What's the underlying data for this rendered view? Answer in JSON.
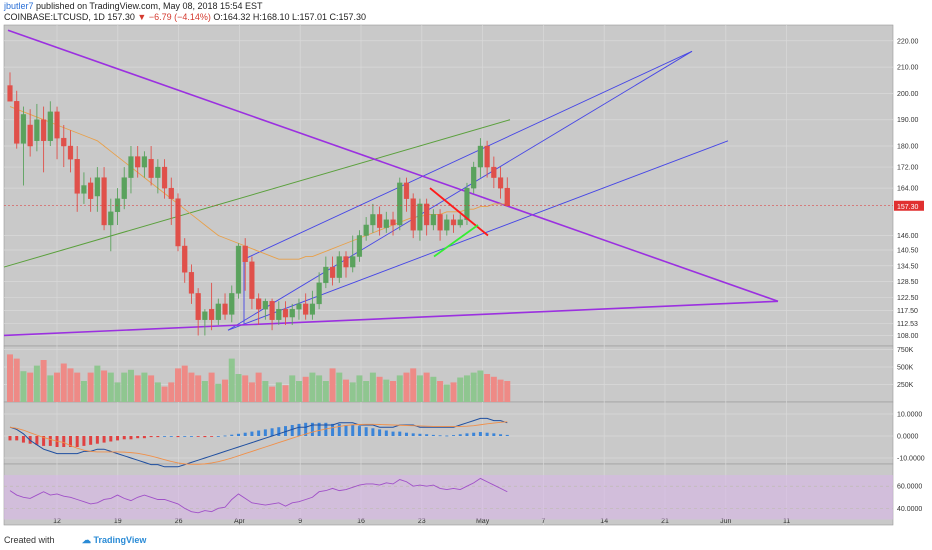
{
  "header": {
    "user": "jbutler7",
    "published": "published on TradingView.com, May 08, 2018 15:54 EST",
    "symbol": "COINBASE:LTCUSD, 1D",
    "last": "157.30",
    "change": "−6.79 (−4.14%)",
    "ohlc": "O:164.32 H:168.10 L:157.01 C:157.30"
  },
  "footer": {
    "created": "Created with",
    "brand": "TradingView"
  },
  "colors": {
    "panel": "#c9c9c9",
    "grid": "#d9d9d9",
    "up": "#5aa25d",
    "down": "#e0504a",
    "price_line": "#e03030",
    "purple": "#9b30e0",
    "channel": "#4646e6",
    "green_line": "#5aa03c",
    "ma": "#e8a04a",
    "macd_line": "#1f4fa0",
    "signal_line": "#f0904a",
    "rsi_line": "#a050c8",
    "rsi_band": "#d8b8e8"
  },
  "chart_data": {
    "type": "candlestick",
    "symbol": "COINBASE:LTCUSD",
    "interval": "1D",
    "y_ticks": [
      "220.00",
      "210.00",
      "200.00",
      "190.00",
      "180.00",
      "172.00",
      "164.00",
      "157.30",
      "146.00",
      "140.50",
      "134.50",
      "128.50",
      "122.50",
      "117.50",
      "112.53",
      "108.00"
    ],
    "x_ticks": [
      "12",
      "19",
      "26",
      "Apr",
      "9",
      "16",
      "23",
      "May",
      "7",
      "14",
      "21",
      "Jun",
      "11"
    ],
    "last_price": "157.30",
    "candles": [
      [
        203,
        197,
        208,
        197
      ],
      [
        197,
        181,
        201,
        179
      ],
      [
        181,
        192,
        195,
        165
      ],
      [
        188,
        180,
        194,
        176
      ],
      [
        182,
        190,
        196,
        178
      ],
      [
        190,
        182,
        195,
        170
      ],
      [
        182,
        193,
        197,
        180
      ],
      [
        193,
        183,
        195,
        175
      ],
      [
        183,
        180,
        188,
        172
      ],
      [
        180,
        175,
        186,
        170
      ],
      [
        175,
        162,
        180,
        155
      ],
      [
        162,
        165,
        170,
        158
      ],
      [
        166,
        160,
        168,
        155
      ],
      [
        161,
        168,
        172,
        155
      ],
      [
        168,
        150,
        172,
        148
      ],
      [
        150,
        155,
        160,
        140
      ],
      [
        155,
        160,
        164,
        150
      ],
      [
        160,
        168,
        172,
        156
      ],
      [
        168,
        176,
        180,
        162
      ],
      [
        176,
        172,
        180,
        168
      ],
      [
        172,
        176,
        178,
        168
      ],
      [
        175,
        168,
        180,
        165
      ],
      [
        168,
        172,
        175,
        162
      ],
      [
        172,
        164,
        175,
        160
      ],
      [
        164,
        160,
        168,
        150
      ],
      [
        160,
        142,
        162,
        140
      ],
      [
        142,
        132,
        145,
        128
      ],
      [
        132,
        124,
        135,
        120
      ],
      [
        124,
        114,
        126,
        108
      ],
      [
        114,
        117,
        118,
        108
      ],
      [
        118,
        114,
        128,
        110
      ],
      [
        114,
        120,
        122,
        112
      ],
      [
        120,
        116,
        124,
        114
      ],
      [
        116,
        124,
        127,
        113
      ],
      [
        124,
        142,
        143,
        122
      ],
      [
        142,
        136,
        145,
        125
      ],
      [
        136,
        122,
        138,
        118
      ],
      [
        122,
        118,
        124,
        112
      ],
      [
        118,
        121,
        122,
        114
      ],
      [
        121,
        114,
        122,
        110
      ],
      [
        114,
        118,
        121,
        112
      ],
      [
        118,
        115,
        121,
        112
      ],
      [
        115,
        118,
        120,
        112
      ],
      [
        118,
        120,
        122,
        114
      ],
      [
        120,
        116,
        124,
        114
      ],
      [
        116,
        120,
        125,
        114
      ],
      [
        120,
        128,
        132,
        118
      ],
      [
        128,
        134,
        138,
        126
      ],
      [
        134,
        130,
        138,
        127
      ],
      [
        130,
        138,
        140,
        128
      ],
      [
        138,
        134,
        140,
        130
      ],
      [
        134,
        138,
        146,
        132
      ],
      [
        138,
        146,
        148,
        136
      ],
      [
        146,
        150,
        153,
        144
      ],
      [
        150,
        154,
        158,
        147
      ],
      [
        154,
        149,
        157,
        146
      ],
      [
        149,
        152,
        155,
        147
      ],
      [
        152,
        150,
        155,
        146
      ],
      [
        150,
        166,
        168,
        148
      ],
      [
        166,
        160,
        168,
        155
      ],
      [
        160,
        148,
        162,
        145
      ],
      [
        148,
        158,
        160,
        144
      ],
      [
        158,
        150,
        160,
        146
      ],
      [
        150,
        154,
        156,
        148
      ],
      [
        154,
        148,
        156,
        144
      ],
      [
        148,
        152,
        154,
        146
      ],
      [
        152,
        150,
        154,
        147
      ],
      [
        150,
        152,
        154,
        149
      ],
      [
        152,
        164,
        166,
        150
      ],
      [
        164,
        172,
        174,
        162
      ],
      [
        172,
        180,
        183,
        168
      ],
      [
        180,
        172,
        182,
        168
      ],
      [
        172,
        168,
        176,
        164
      ],
      [
        168,
        164,
        172,
        160
      ],
      [
        164,
        157.3,
        168.1,
        157.01
      ]
    ],
    "volume_ticks": [
      "750K",
      "500K",
      "250K"
    ],
    "volume": [
      680,
      620,
      440,
      420,
      520,
      600,
      380,
      420,
      550,
      480,
      420,
      300,
      420,
      520,
      450,
      420,
      280,
      420,
      460,
      380,
      420,
      380,
      280,
      220,
      280,
      480,
      520,
      420,
      380,
      300,
      420,
      260,
      320,
      620,
      400,
      380,
      280,
      420,
      300,
      220,
      280,
      240,
      380,
      300,
      360,
      420,
      380,
      300,
      480,
      420,
      320,
      280,
      380,
      300,
      420,
      360,
      320,
      300,
      380,
      420,
      480,
      380,
      420,
      360,
      300,
      250,
      280,
      350,
      380,
      420,
      450,
      400,
      360,
      320,
      300
    ],
    "macd_ticks": [
      "10.0000",
      "0.0000",
      "-10.0000"
    ],
    "macd_hist": [
      -2,
      -2,
      -3,
      -3.5,
      -4,
      -4.5,
      -4.5,
      -5,
      -5,
      -5,
      -5,
      -4.5,
      -4,
      -3.5,
      -3,
      -2.5,
      -2,
      -1.5,
      -1.5,
      -1,
      -1,
      -0.5,
      -0.5,
      0,
      0,
      -0.5,
      0,
      0,
      -0.3,
      -0.5,
      -0.3,
      0,
      0.2,
      0.6,
      1,
      1.5,
      2,
      2.5,
      3,
      3.5,
      4,
      4.5,
      5,
      5.5,
      6,
      6,
      6,
      6,
      5.5,
      5.5,
      5,
      5,
      4.5,
      4,
      3.5,
      3,
      2.5,
      2,
      2,
      1.5,
      1.2,
      1,
      0.8,
      0.5,
      0.3,
      0.2,
      0.4,
      0.8,
      1.2,
      1.5,
      1.8,
      1.5,
      1.2,
      0.8,
      0.5
    ],
    "rsi_ticks": [
      "60.0000",
      "40.0000"
    ],
    "rsi": [
      56,
      52,
      50,
      49,
      52,
      55,
      52,
      53,
      51,
      50,
      48,
      46,
      44,
      45,
      48,
      49,
      52,
      49,
      47,
      50,
      52,
      50,
      48,
      48,
      46,
      44,
      40,
      37,
      36,
      38,
      37,
      40,
      41,
      48,
      53,
      49,
      45,
      44,
      43,
      44,
      45,
      42,
      45,
      46,
      48,
      50,
      55,
      56,
      58,
      56,
      57,
      59,
      61,
      62,
      62,
      61,
      63,
      62,
      66,
      64,
      60,
      61,
      60,
      61,
      58,
      57,
      58,
      57,
      60,
      63,
      67,
      64,
      61,
      58,
      55
    ]
  }
}
